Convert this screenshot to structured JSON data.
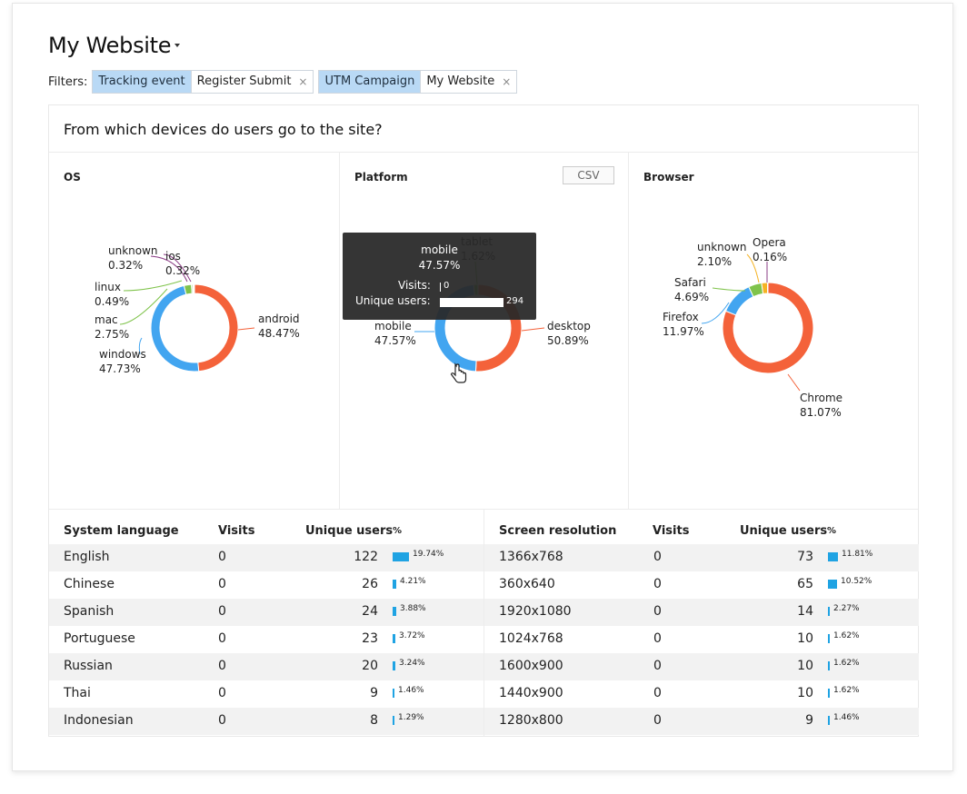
{
  "header": {
    "title": "My Website"
  },
  "filters": {
    "label": "Filters:",
    "chips": [
      {
        "key": "Tracking event",
        "value": "Register Submit"
      },
      {
        "key": "UTM Campaign",
        "value": "My Website"
      }
    ],
    "remove_glyph": "×"
  },
  "panel": {
    "title": "From which devices do users go to the site?",
    "csv_label": "CSV"
  },
  "colors": {
    "orange": "#f4623a",
    "blue": "#42a5f0",
    "green": "#7fc34b",
    "purple": "#8b3d86",
    "amber": "#f5b324",
    "accent": "#1fa3e3"
  },
  "chart_data": [
    {
      "type": "pie",
      "title": "OS",
      "labels": [
        "android",
        "windows",
        "mac",
        "linux",
        "unknown",
        "ios"
      ],
      "values": [
        48.47,
        47.73,
        2.75,
        0.49,
        0.32,
        0.32
      ],
      "display": [
        "48.47%",
        "47.73%",
        "2.75%",
        "0.49%",
        "0.32%",
        "0.32%"
      ]
    },
    {
      "type": "pie",
      "title": "Platform",
      "labels": [
        "desktop",
        "mobile",
        "tablet"
      ],
      "values": [
        50.89,
        47.57,
        1.62
      ],
      "display": [
        "50.89%",
        "47.57%",
        "1.62%"
      ]
    },
    {
      "type": "pie",
      "title": "Browser",
      "labels": [
        "Chrome",
        "Firefox",
        "Safari",
        "unknown",
        "Opera"
      ],
      "values": [
        81.07,
        11.97,
        4.69,
        2.1,
        0.16
      ],
      "display": [
        "81.07%",
        "11.97%",
        "4.69%",
        "2.10%",
        "0.16%"
      ]
    }
  ],
  "tooltip": {
    "category": "mobile",
    "percent": "47.57%",
    "visits_label": "Visits:",
    "visits_value": "0",
    "visits_fraction": 0,
    "users_label": "Unique users:",
    "users_value": "294",
    "users_fraction": 1
  },
  "tables": {
    "language": {
      "headers": [
        "System language",
        "Visits",
        "Unique users",
        "%"
      ],
      "rows": [
        {
          "name": "English",
          "visits": "0",
          "users": "122",
          "pct": "19.74%",
          "frac": 0.1974
        },
        {
          "name": "Chinese",
          "visits": "0",
          "users": "26",
          "pct": "4.21%",
          "frac": 0.0421
        },
        {
          "name": "Spanish",
          "visits": "0",
          "users": "24",
          "pct": "3.88%",
          "frac": 0.0388
        },
        {
          "name": "Portuguese",
          "visits": "0",
          "users": "23",
          "pct": "3.72%",
          "frac": 0.0372
        },
        {
          "name": "Russian",
          "visits": "0",
          "users": "20",
          "pct": "3.24%",
          "frac": 0.0324
        },
        {
          "name": "Thai",
          "visits": "0",
          "users": "9",
          "pct": "1.46%",
          "frac": 0.0146
        },
        {
          "name": "Indonesian",
          "visits": "0",
          "users": "8",
          "pct": "1.29%",
          "frac": 0.0129
        }
      ]
    },
    "resolution": {
      "headers": [
        "Screen resolution",
        "Visits",
        "Unique users",
        "%"
      ],
      "rows": [
        {
          "name": "1366x768",
          "visits": "0",
          "users": "73",
          "pct": "11.81%",
          "frac": 0.1181
        },
        {
          "name": "360x640",
          "visits": "0",
          "users": "65",
          "pct": "10.52%",
          "frac": 0.1052
        },
        {
          "name": "1920x1080",
          "visits": "0",
          "users": "14",
          "pct": "2.27%",
          "frac": 0.0227
        },
        {
          "name": "1024x768",
          "visits": "0",
          "users": "10",
          "pct": "1.62%",
          "frac": 0.0162
        },
        {
          "name": "1600x900",
          "visits": "0",
          "users": "10",
          "pct": "1.62%",
          "frac": 0.0162
        },
        {
          "name": "1440x900",
          "visits": "0",
          "users": "10",
          "pct": "1.62%",
          "frac": 0.0162
        },
        {
          "name": "1280x800",
          "visits": "0",
          "users": "9",
          "pct": "1.46%",
          "frac": 0.0146
        }
      ]
    }
  }
}
